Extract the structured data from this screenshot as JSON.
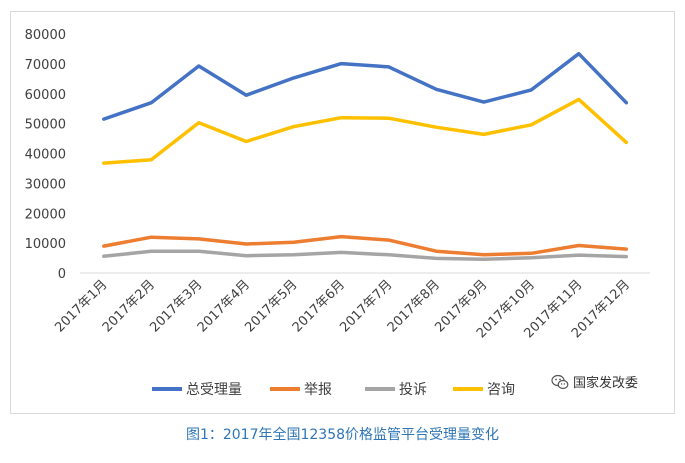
{
  "chart_data": {
    "type": "line",
    "title": "",
    "xlabel": "",
    "ylabel": "",
    "ylim": [
      0,
      80000
    ],
    "yticks": [
      0,
      10000,
      20000,
      30000,
      40000,
      50000,
      60000,
      70000,
      80000
    ],
    "grid": false,
    "legend_position": "bottom",
    "categories": [
      "2017年1月",
      "2017年2月",
      "2017年3月",
      "2017年4月",
      "2017年5月",
      "2017年6月",
      "2017年7月",
      "2017年8月",
      "2017年9月",
      "2017年10月",
      "2017年11月",
      "2017年12月"
    ],
    "series": [
      {
        "name": "总受理量",
        "color": "#4472c4",
        "values": [
          51500,
          57000,
          69300,
          59500,
          65300,
          70100,
          69000,
          61500,
          57200,
          61300,
          73400,
          57000
        ]
      },
      {
        "name": "举报",
        "color": "#ed7d31",
        "values": [
          9000,
          12000,
          11400,
          9700,
          10300,
          12200,
          11000,
          7300,
          6100,
          6600,
          9200,
          8000
        ]
      },
      {
        "name": "投诉",
        "color": "#a5a5a5",
        "values": [
          5600,
          7300,
          7300,
          5800,
          6100,
          6900,
          6100,
          4900,
          4600,
          5100,
          6000,
          5500
        ]
      },
      {
        "name": "咨询",
        "color": "#ffc000",
        "values": [
          36800,
          37900,
          50300,
          44000,
          49000,
          52000,
          51800,
          48800,
          46400,
          49600,
          58100,
          43700
        ]
      }
    ]
  },
  "watermark": {
    "text": "国家发改委",
    "icon": "wechat-icon"
  },
  "caption": "图1：2017年全国12358价格监管平台受理量变化"
}
